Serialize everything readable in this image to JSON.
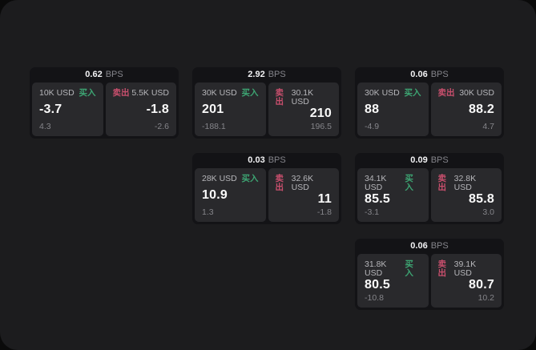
{
  "labels": {
    "buy": "买入",
    "sell": "卖出",
    "unit": "BPS"
  },
  "colors": {
    "buy": "#3da573",
    "sell": "#c94f6d",
    "window_bg": "#1c1c1e",
    "card_bg": "#131316",
    "tile_bg": "#29292c"
  },
  "cards": [
    {
      "bps": "0.62",
      "buy": {
        "notional": "10K USD",
        "price": "-3.7",
        "delta": "4.3"
      },
      "sell": {
        "notional": "5.5K USD",
        "price": "-1.8",
        "delta": "-2.6"
      }
    },
    {
      "bps": "2.92",
      "buy": {
        "notional": "30K USD",
        "price": "201",
        "delta": "-188.1"
      },
      "sell": {
        "notional": "30.1K USD",
        "price": "210",
        "delta": "196.5"
      }
    },
    {
      "bps": "0.06",
      "buy": {
        "notional": "30K USD",
        "price": "88",
        "delta": "-4.9"
      },
      "sell": {
        "notional": "30K USD",
        "price": "88.2",
        "delta": "4.7"
      }
    },
    {
      "bps": "0.03",
      "buy": {
        "notional": "28K USD",
        "price": "10.9",
        "delta": "1.3"
      },
      "sell": {
        "notional": "32.6K USD",
        "price": "11",
        "delta": "-1.8"
      }
    },
    {
      "bps": "0.09",
      "buy": {
        "notional": "34.1K USD",
        "price": "85.5",
        "delta": "-3.1"
      },
      "sell": {
        "notional": "32.8K USD",
        "price": "85.8",
        "delta": "3.0"
      }
    },
    {
      "bps": "0.06",
      "buy": {
        "notional": "31.8K USD",
        "price": "80.5",
        "delta": "-10.8"
      },
      "sell": {
        "notional": "39.1K USD",
        "price": "80.7",
        "delta": "10.2"
      }
    }
  ]
}
